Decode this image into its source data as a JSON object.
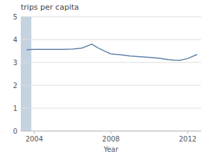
{
  "chart_data": {
    "type": "line",
    "title": "trips per capita",
    "xlabel": "Year",
    "x": [
      2003.6,
      2004,
      2004.5,
      2005,
      2005.5,
      2006,
      2006.5,
      2007,
      2007.3,
      2007.7,
      2008,
      2008.5,
      2009,
      2009.5,
      2010,
      2010.5,
      2011,
      2011.3,
      2011.6,
      2012,
      2012.5
    ],
    "values": [
      3.55,
      3.57,
      3.57,
      3.57,
      3.57,
      3.58,
      3.63,
      3.8,
      3.65,
      3.48,
      3.37,
      3.33,
      3.28,
      3.25,
      3.22,
      3.18,
      3.12,
      3.1,
      3.09,
      3.17,
      3.35
    ],
    "color": "#5b7fa6",
    "xlim": [
      2003.3,
      2012.7
    ],
    "xticks": [
      2004,
      2008,
      2012
    ],
    "ylim": [
      0,
      5
    ],
    "yticks": [
      0,
      1,
      2,
      3,
      4,
      5
    ],
    "grid": true,
    "shade": {
      "x": [
        2003.3,
        2003.85
      ],
      "color": "#c5d2e0"
    }
  }
}
